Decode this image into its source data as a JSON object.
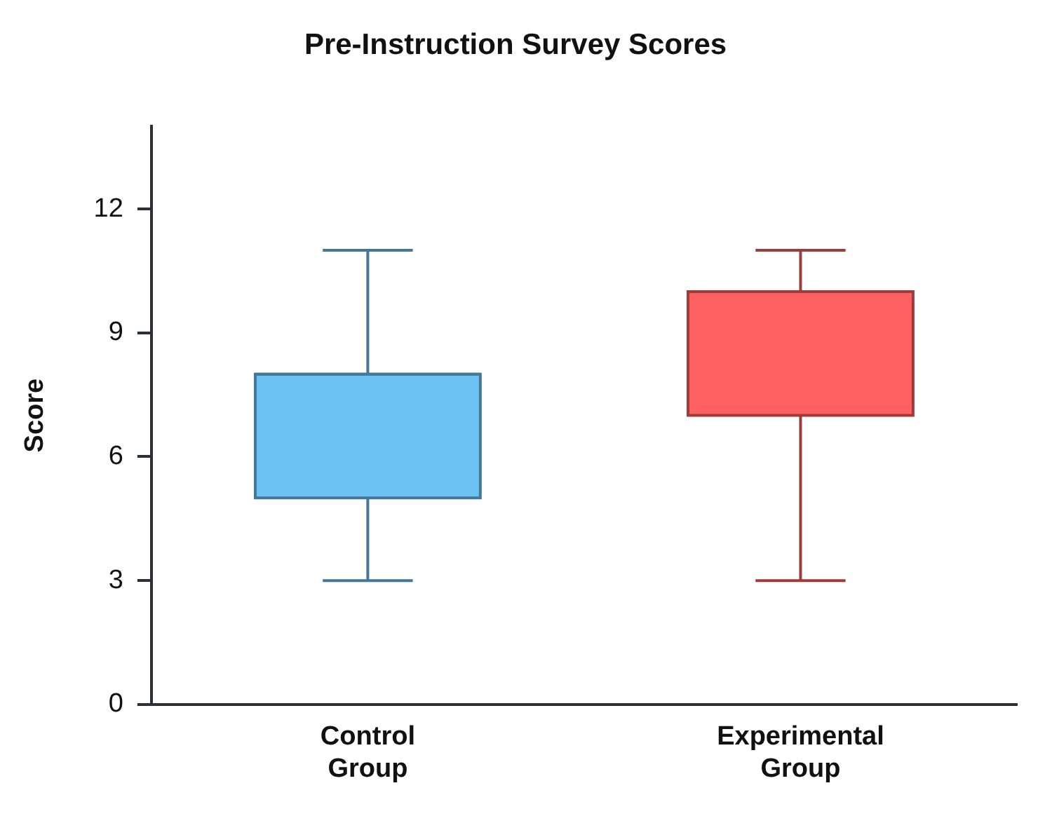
{
  "chart_data": {
    "type": "box",
    "title": "Pre-Instruction Survey Scores",
    "ylabel": "Score",
    "categories": [
      "Control Group",
      "Experimental Group"
    ],
    "boxes": [
      {
        "low": 3,
        "q1": 5,
        "median": 8,
        "q3": 8,
        "high": 11
      },
      {
        "low": 3,
        "q1": 7,
        "median": 10,
        "q3": 10,
        "high": 11
      }
    ],
    "colors": [
      "#6cc3f3",
      "#ff6161"
    ],
    "ylim": [
      0,
      14
    ],
    "yticks": [
      0,
      3,
      6,
      9,
      12
    ],
    "grid": false,
    "legend": false
  }
}
